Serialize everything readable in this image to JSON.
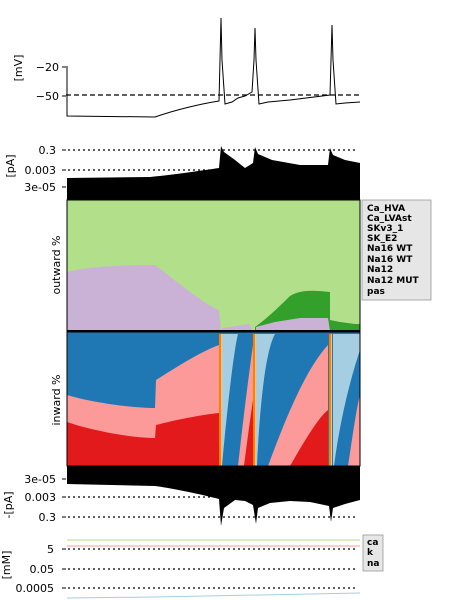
{
  "colors": {
    "Ca_HVA": "#a6cee3",
    "Ca_LVAst": "#1f78b4",
    "SKv3_1": "#b2df8a",
    "SK_E2": "#33a02c",
    "Na16_WT_light": "#fb9a99",
    "Na16_WT": "#e31a1c",
    "Na12": "#fdbf6f",
    "Na12_MUT": "#ff7f00",
    "pas": "#cab2d6",
    "ca": "#a6cee3",
    "k": "#b2df8a",
    "na": "#fb9a99"
  },
  "chart_data": [
    {
      "type": "line",
      "panel": "voltage",
      "ylabel": "[mV]",
      "yticks": [
        "−20",
        "−50"
      ],
      "threshold_mV": -50,
      "spike_times_frac": [
        0.525,
        0.64,
        0.905
      ],
      "resting_mV": -65
    },
    {
      "type": "area",
      "panel": "outward_total",
      "ylabel": "[pA]",
      "yscale": "log",
      "yticks": [
        "0.3",
        "0.003",
        "3e-05"
      ]
    },
    {
      "type": "area",
      "panel": "outward_shares",
      "ylabel": "outward %",
      "series_order": [
        "pas",
        "SK_E2",
        "SKv3_1"
      ]
    },
    {
      "type": "area",
      "panel": "inward_shares",
      "ylabel": "inward %",
      "series_order": [
        "Na16_WT",
        "Na16_WT_light",
        "Ca_LVAst",
        "Ca_HVA",
        "Na12_MUT"
      ]
    },
    {
      "type": "area",
      "panel": "inward_total",
      "ylabel": "-[pA]",
      "yscale": "log",
      "yticks": [
        "3e-05",
        "0.003",
        "0.3"
      ]
    },
    {
      "type": "line",
      "panel": "concentrations",
      "ylabel": "[mM]",
      "yscale": "log",
      "yticks": [
        "5",
        "0.05",
        "0.0005"
      ],
      "series": [
        {
          "name": "ca",
          "values": [
            0.0001,
            0.0003
          ]
        },
        {
          "name": "k",
          "values": [
            54,
            54
          ]
        },
        {
          "name": "na",
          "values": [
            10,
            10
          ]
        }
      ]
    }
  ],
  "legend_currents": {
    "items": [
      {
        "label": "Ca_HVA",
        "color": "#a6cee3"
      },
      {
        "label": "Ca_LVAst",
        "color": "#1f78b4"
      },
      {
        "label": "SKv3_1",
        "color": "#b2df8a"
      },
      {
        "label": "SK_E2",
        "color": "#33a02c"
      },
      {
        "label": "Na16 WT",
        "color": "#fb9a99"
      },
      {
        "label": "Na16 WT",
        "color": "#e31a1c"
      },
      {
        "label": "Na12",
        "color": "#fdbf6f"
      },
      {
        "label": "Na12 MUT",
        "color": "#ff7f00"
      },
      {
        "label": "pas",
        "color": "#cab2d6"
      }
    ]
  },
  "legend_ions": {
    "items": [
      {
        "label": "ca",
        "color": "#a6cee3"
      },
      {
        "label": "k",
        "color": "#b2df8a"
      },
      {
        "label": "na",
        "color": "#fb9a99"
      }
    ]
  }
}
